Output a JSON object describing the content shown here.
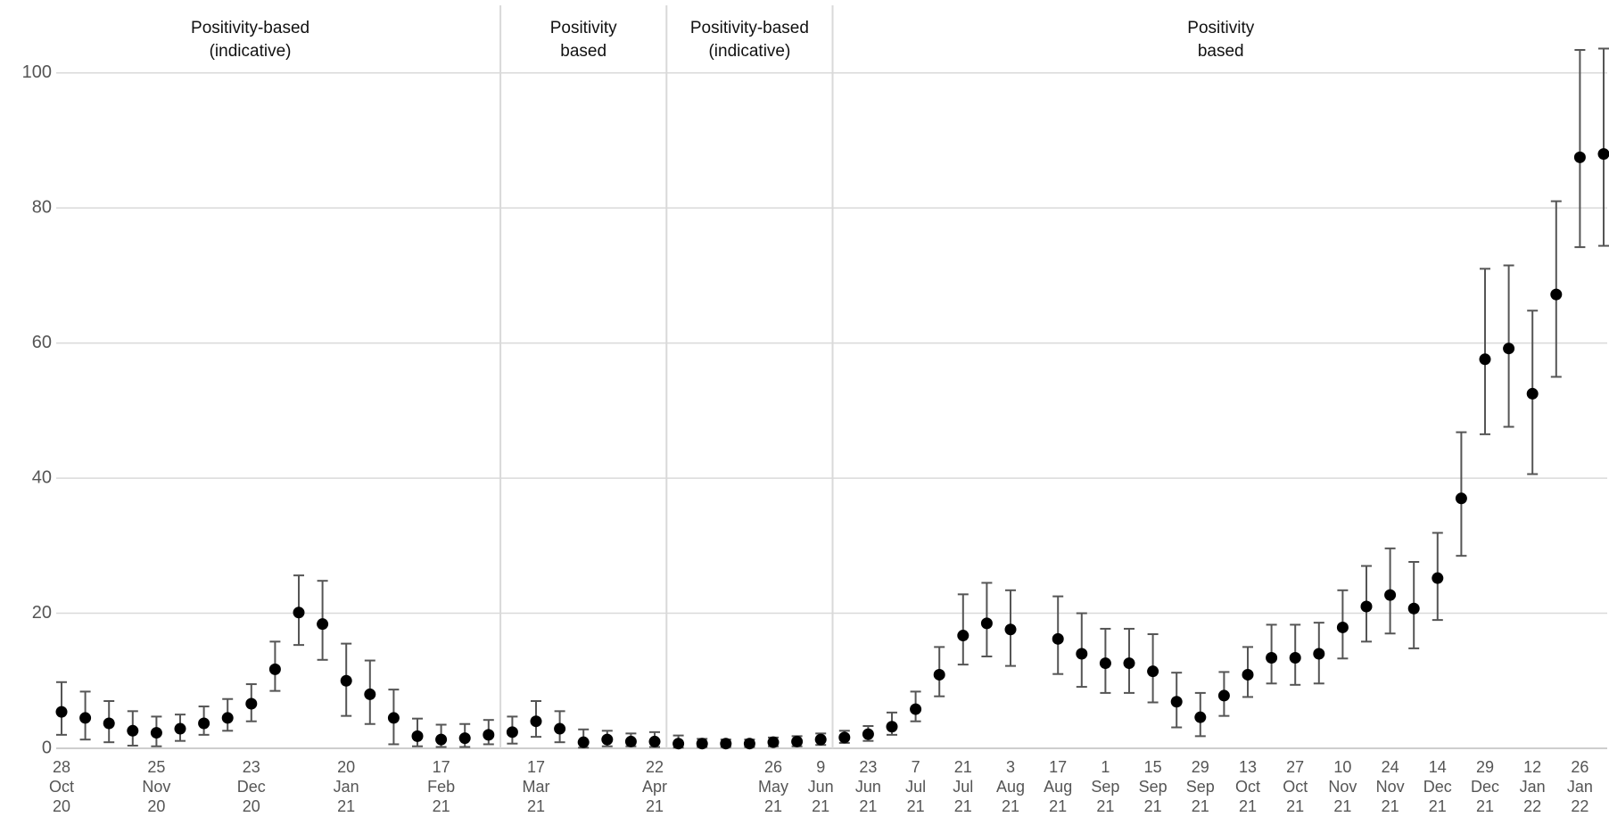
{
  "chart_data": {
    "type": "errorbar",
    "categories": [
      "28\nOct\n20",
      null,
      null,
      null,
      "25\nNov\n20",
      null,
      null,
      null,
      "23\nDec\n20",
      null,
      null,
      null,
      "20\nJan\n21",
      null,
      null,
      null,
      "17\nFeb\n21",
      null,
      null,
      null,
      "17\nMar\n21",
      null,
      null,
      null,
      null,
      "22\nApr\n21",
      null,
      null,
      null,
      null,
      "26\nMay\n21",
      null,
      "9\nJun\n21",
      null,
      "23\nJun\n21",
      null,
      "7\nJul\n21",
      null,
      "21\nJul\n21",
      null,
      "3\nAug\n21",
      null,
      "17\nAug\n21",
      null,
      "1\nSep\n21",
      null,
      "15\nSep\n21",
      null,
      "29\nSep\n21",
      null,
      "13\nOct\n21",
      null,
      "27\nOct\n21",
      null,
      "10\nNov\n21",
      null,
      "24\nNov\n21",
      null,
      "14\nDec\n21",
      null,
      "29\nDec\n21",
      null,
      "12\nJan\n22",
      null,
      "26\nJan\n22",
      null
    ],
    "values": [
      5.4,
      4.5,
      3.7,
      2.6,
      2.3,
      2.9,
      3.7,
      4.5,
      6.6,
      11.7,
      20.1,
      18.4,
      10.0,
      8.0,
      4.5,
      1.8,
      1.3,
      1.5,
      2.0,
      2.4,
      4.0,
      2.9,
      0.9,
      1.3,
      1.0,
      1.0,
      0.7,
      0.7,
      0.7,
      0.7,
      0.9,
      1.0,
      1.3,
      1.6,
      2.1,
      3.2,
      5.8,
      10.9,
      16.7,
      18.5,
      17.6,
      null,
      16.2,
      14.0,
      12.6,
      12.6,
      11.4,
      6.9,
      4.6,
      7.8,
      10.9,
      13.4,
      13.4,
      14.0,
      17.9,
      21.0,
      22.7,
      20.7,
      25.2,
      37.0,
      57.6,
      59.2,
      52.5,
      67.2,
      87.5,
      88.0
    ],
    "lower": [
      2.0,
      1.3,
      0.9,
      0.4,
      0.3,
      1.1,
      2.0,
      2.6,
      4.0,
      8.5,
      15.3,
      13.1,
      4.8,
      3.6,
      0.6,
      0.3,
      0.2,
      0.2,
      0.6,
      0.7,
      1.7,
      0.9,
      0.1,
      0.3,
      0.3,
      0.2,
      0.1,
      0.2,
      0.2,
      0.2,
      0.3,
      0.3,
      0.5,
      0.8,
      1.1,
      2.0,
      4.0,
      7.7,
      12.4,
      13.6,
      12.2,
      null,
      11.0,
      9.1,
      8.2,
      8.2,
      6.8,
      3.1,
      1.8,
      4.8,
      7.6,
      9.6,
      9.4,
      9.6,
      13.3,
      15.8,
      17.0,
      14.8,
      19.0,
      28.5,
      46.5,
      47.6,
      40.6,
      55.0,
      74.2,
      74.4
    ],
    "upper": [
      9.8,
      8.4,
      7.0,
      5.5,
      4.7,
      5.0,
      6.2,
      7.3,
      9.5,
      15.8,
      25.6,
      24.8,
      15.5,
      13.0,
      8.7,
      4.4,
      3.5,
      3.6,
      4.2,
      4.7,
      7.0,
      5.5,
      2.8,
      2.6,
      2.2,
      2.4,
      1.9,
      1.4,
      1.3,
      1.3,
      1.6,
      1.8,
      2.2,
      2.6,
      3.3,
      5.3,
      8.4,
      15.0,
      22.8,
      24.5,
      23.4,
      null,
      22.5,
      20.0,
      17.7,
      17.7,
      16.9,
      11.2,
      8.2,
      11.3,
      15.0,
      18.3,
      18.3,
      18.6,
      23.4,
      27.0,
      29.6,
      27.6,
      31.9,
      46.8,
      71.0,
      71.5,
      64.8,
      81.0,
      103.4,
      103.6
    ],
    "color": "#000000",
    "error_color": "#555555",
    "ylim": [
      0,
      110
    ],
    "yticks": [
      0,
      20,
      40,
      60,
      80,
      100
    ],
    "grid": true,
    "regions": [
      {
        "label": "Positivity-based\n(indicative)",
        "start": 0,
        "end": 18
      },
      {
        "label": "Positivity\nbased",
        "start": 19,
        "end": 25
      },
      {
        "label": "Positivity-based\n(indicative)",
        "start": 26,
        "end": 32
      },
      {
        "label": "Positivity\nbased",
        "start": 33,
        "end": 65
      }
    ]
  }
}
